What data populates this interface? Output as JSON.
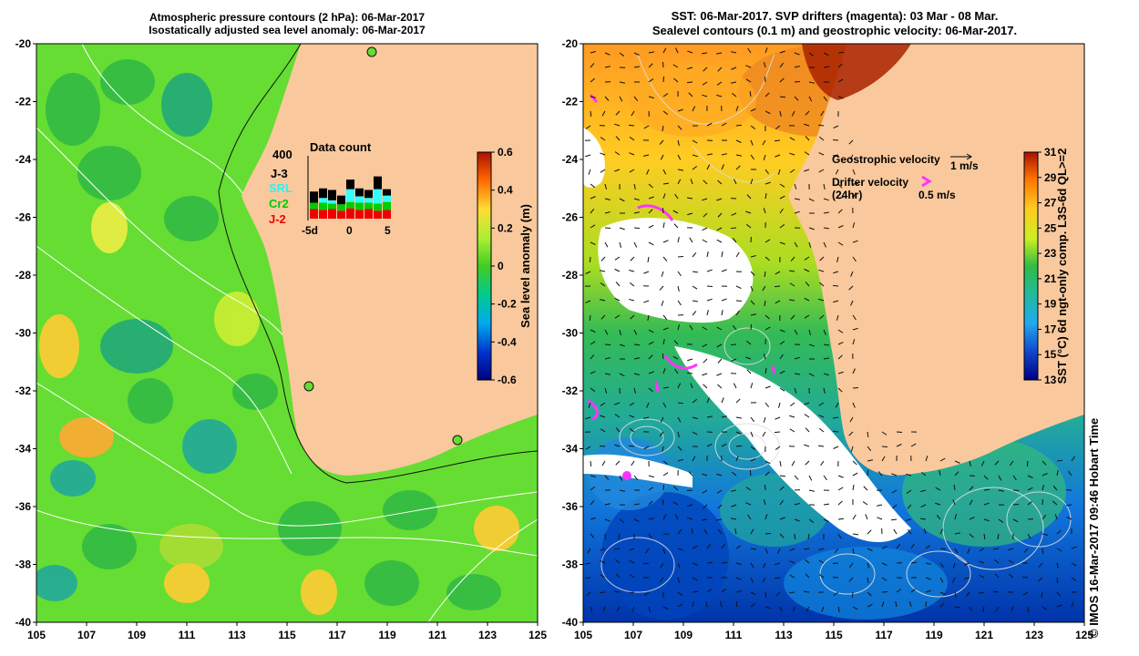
{
  "left_panel": {
    "title_line1": "Atmospheric pressure contours (2 hPa): 06-Mar-2017",
    "title_line2": "Isostatically adjusted sea level anomaly: 06-Mar-2017",
    "x_ticks": [
      "105",
      "107",
      "109",
      "111",
      "113",
      "115",
      "117",
      "119",
      "121",
      "123",
      "125"
    ],
    "y_ticks": [
      "-20",
      "-22",
      "-24",
      "-26",
      "-28",
      "-30",
      "-32",
      "-34",
      "-36",
      "-38",
      "-40"
    ],
    "colorbar": {
      "label": "Sea level anomaly (m)",
      "ticks": [
        "0.6",
        "0.4",
        "0.2",
        "0",
        "-0.2",
        "-0.4",
        "-0.6"
      ],
      "range": [
        -0.6,
        0.6
      ]
    },
    "data_count": {
      "title": "Data count",
      "y_max_label": "400",
      "legend": [
        {
          "label": "J-3",
          "color": "#000000"
        },
        {
          "label": "SRL",
          "color": "#33ffff"
        },
        {
          "label": "Cr2",
          "color": "#00cc00"
        },
        {
          "label": "J-2",
          "color": "#ee0000"
        }
      ],
      "x_ticks": [
        "-5d",
        "0",
        "5"
      ],
      "bars": [
        {
          "j2": 60,
          "cr2": 40,
          "srl": 0,
          "j3": 70
        },
        {
          "j2": 55,
          "cr2": 45,
          "srl": 30,
          "j3": 60
        },
        {
          "j2": 60,
          "cr2": 35,
          "srl": 20,
          "j3": 65
        },
        {
          "j2": 50,
          "cr2": 40,
          "srl": 0,
          "j3": 55
        },
        {
          "j2": 65,
          "cr2": 40,
          "srl": 80,
          "j3": 60
        },
        {
          "j2": 55,
          "cr2": 45,
          "srl": 40,
          "j3": 50
        },
        {
          "j2": 60,
          "cr2": 40,
          "srl": 30,
          "j3": 50
        },
        {
          "j2": 50,
          "cr2": 45,
          "srl": 90,
          "j3": 80
        },
        {
          "j2": 55,
          "cr2": 50,
          "srl": 40,
          "j3": 40
        }
      ]
    }
  },
  "right_panel": {
    "title_line1": "SST: 06-Mar-2017. SVP drifters (magenta): 03 Mar - 08 Mar.",
    "title_line2": "Sealevel contours (0.1 m) and geostrophic velocity: 06-Mar-2017.",
    "x_ticks": [
      "105",
      "107",
      "109",
      "111",
      "113",
      "115",
      "117",
      "119",
      "121",
      "123",
      "125"
    ],
    "y_ticks": [
      "-20",
      "-22",
      "-24",
      "-26",
      "-28",
      "-30",
      "-32",
      "-34",
      "-36",
      "-38",
      "-40"
    ],
    "legend_geo": "Geostrophic velocity",
    "legend_geo_scale": "1 m/s",
    "legend_drifter": "Drifter velocity",
    "legend_drifter_sub": "(24hr)",
    "legend_drifter_scale": "0.5 m/s",
    "colorbar": {
      "label": "SST (°C) 6d ngt-only comp. L3S-6d QL>=2",
      "ticks": [
        "31",
        "29",
        "27",
        "25",
        "23",
        "21",
        "19",
        "17",
        "15",
        "13"
      ],
      "range": [
        13,
        31
      ]
    }
  },
  "credit": "© IMOS 16-Mar-2017 09:46 Hobart Time",
  "colors": {
    "land": "#f9c99d",
    "sla_base": "#66dd33",
    "white_cloud": "#ffffff",
    "drifter": "#ff33ff"
  }
}
